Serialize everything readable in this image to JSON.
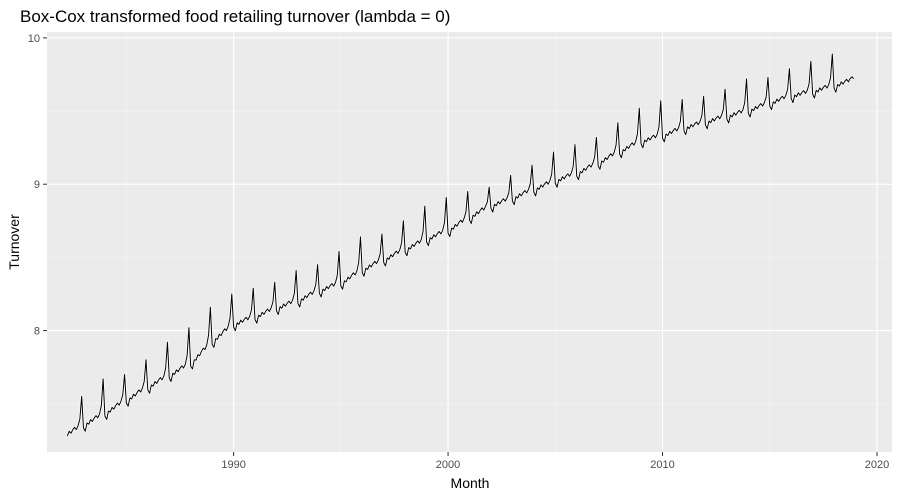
{
  "chart_data": {
    "type": "line",
    "title": "Box-Cox transformed food retailing turnover (lambda = 0)",
    "xlabel": "Month",
    "ylabel": "Turnover",
    "xlim": [
      1981.3,
      2020.7
    ],
    "ylim": [
      7.17,
      10.04
    ],
    "x_ticks": [
      1990,
      2000,
      2010,
      2020
    ],
    "y_ticks": [
      8,
      9,
      10
    ],
    "x_tick_labels": [
      "1990",
      "2000",
      "2010",
      "2020"
    ],
    "y_tick_labels": [
      "8",
      "9",
      "10"
    ],
    "grid": true,
    "legend": "none",
    "panel_color": "#ebebeb",
    "line_color": "#000000",
    "series": [
      {
        "x_start": "1982-04",
        "x_end": "2018-12",
        "frequency": "monthly",
        "annual_points": [
          {
            "x": 1982.25,
            "y": 7.3
          },
          {
            "x": 1983.0,
            "y": 7.36
          },
          {
            "x": 1984.0,
            "y": 7.44
          },
          {
            "x": 1985.0,
            "y": 7.53
          },
          {
            "x": 1986.0,
            "y": 7.62
          },
          {
            "x": 1987.0,
            "y": 7.7
          },
          {
            "x": 1988.0,
            "y": 7.78
          },
          {
            "x": 1989.0,
            "y": 7.93
          },
          {
            "x": 1990.0,
            "y": 8.05
          },
          {
            "x": 1991.0,
            "y": 8.1
          },
          {
            "x": 1992.0,
            "y": 8.16
          },
          {
            "x": 1993.0,
            "y": 8.21
          },
          {
            "x": 1994.0,
            "y": 8.28
          },
          {
            "x": 1995.0,
            "y": 8.33
          },
          {
            "x": 1996.0,
            "y": 8.42
          },
          {
            "x": 1997.0,
            "y": 8.49
          },
          {
            "x": 1998.0,
            "y": 8.56
          },
          {
            "x": 1999.0,
            "y": 8.63
          },
          {
            "x": 2000.0,
            "y": 8.69
          },
          {
            "x": 2001.0,
            "y": 8.78
          },
          {
            "x": 2002.0,
            "y": 8.86
          },
          {
            "x": 2003.0,
            "y": 8.91
          },
          {
            "x": 2004.0,
            "y": 8.97
          },
          {
            "x": 2005.0,
            "y": 9.03
          },
          {
            "x": 2006.0,
            "y": 9.08
          },
          {
            "x": 2007.0,
            "y": 9.15
          },
          {
            "x": 2008.0,
            "y": 9.23
          },
          {
            "x": 2009.0,
            "y": 9.3
          },
          {
            "x": 2010.0,
            "y": 9.34
          },
          {
            "x": 2011.0,
            "y": 9.39
          },
          {
            "x": 2012.0,
            "y": 9.43
          },
          {
            "x": 2013.0,
            "y": 9.47
          },
          {
            "x": 2014.0,
            "y": 9.51
          },
          {
            "x": 2015.0,
            "y": 9.56
          },
          {
            "x": 2016.0,
            "y": 9.61
          },
          {
            "x": 2017.0,
            "y": 9.64
          },
          {
            "x": 2018.0,
            "y": 9.68
          },
          {
            "x": 2018.92,
            "y": 9.72
          }
        ],
        "december_peaks": [
          {
            "x": 1982.96,
            "y": 7.55
          },
          {
            "x": 1983.96,
            "y": 7.67
          },
          {
            "x": 1984.96,
            "y": 7.7
          },
          {
            "x": 1985.96,
            "y": 7.8
          },
          {
            "x": 1986.96,
            "y": 7.92
          },
          {
            "x": 1987.96,
            "y": 8.02
          },
          {
            "x": 1988.96,
            "y": 8.16
          },
          {
            "x": 1989.96,
            "y": 8.25
          },
          {
            "x": 1990.96,
            "y": 8.29
          },
          {
            "x": 1991.96,
            "y": 8.33
          },
          {
            "x": 1992.96,
            "y": 8.41
          },
          {
            "x": 1993.96,
            "y": 8.45
          },
          {
            "x": 1994.96,
            "y": 8.54
          },
          {
            "x": 1995.96,
            "y": 8.64
          },
          {
            "x": 1996.96,
            "y": 8.66
          },
          {
            "x": 1997.96,
            "y": 8.75
          },
          {
            "x": 1998.96,
            "y": 8.85
          },
          {
            "x": 1999.96,
            "y": 8.91
          },
          {
            "x": 2000.96,
            "y": 8.95
          },
          {
            "x": 2001.96,
            "y": 8.98
          },
          {
            "x": 2002.96,
            "y": 9.06
          },
          {
            "x": 2003.96,
            "y": 9.13
          },
          {
            "x": 2004.96,
            "y": 9.22
          },
          {
            "x": 2005.96,
            "y": 9.27
          },
          {
            "x": 2006.96,
            "y": 9.32
          },
          {
            "x": 2007.96,
            "y": 9.42
          },
          {
            "x": 2008.96,
            "y": 9.52
          },
          {
            "x": 2009.96,
            "y": 9.57
          },
          {
            "x": 2010.96,
            "y": 9.58
          },
          {
            "x": 2011.96,
            "y": 9.6
          },
          {
            "x": 2012.96,
            "y": 9.65
          },
          {
            "x": 2013.96,
            "y": 9.72
          },
          {
            "x": 2014.96,
            "y": 9.73
          },
          {
            "x": 2015.96,
            "y": 9.79
          },
          {
            "x": 2016.96,
            "y": 9.84
          },
          {
            "x": 2017.96,
            "y": 9.89
          }
        ]
      }
    ]
  }
}
